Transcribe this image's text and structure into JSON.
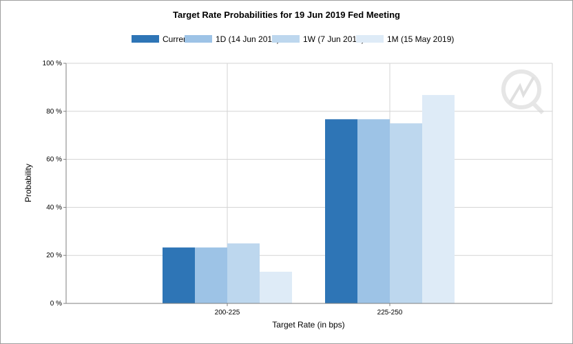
{
  "chart_data": {
    "type": "bar",
    "title": "Target Rate Probabilities for 19 Jun 2019 Fed Meeting",
    "xlabel": "Target Rate (in bps)",
    "ylabel": "Probability",
    "categories": [
      "200-225",
      "225-250"
    ],
    "ylim": [
      0,
      100
    ],
    "yticks": [
      "0 %",
      "20 %",
      "40 %",
      "60 %",
      "80 %",
      "100 %"
    ],
    "ytick_values": [
      0,
      20,
      40,
      60,
      80,
      100
    ],
    "grid": true,
    "legend_position": "top-center",
    "series": [
      {
        "name": "Current",
        "color": "#2e75b6",
        "values": [
          23.3,
          76.7
        ]
      },
      {
        "name": "1D (14 Jun 2019)",
        "color": "#9dc3e6",
        "values": [
          23.3,
          76.7
        ]
      },
      {
        "name": "1W (7 Jun 2019)",
        "color": "#bdd7ee",
        "values": [
          25.0,
          75.0
        ]
      },
      {
        "name": "1M (15 May 2019)",
        "color": "#deebf7",
        "values": [
          13.2,
          86.8
        ]
      }
    ]
  }
}
